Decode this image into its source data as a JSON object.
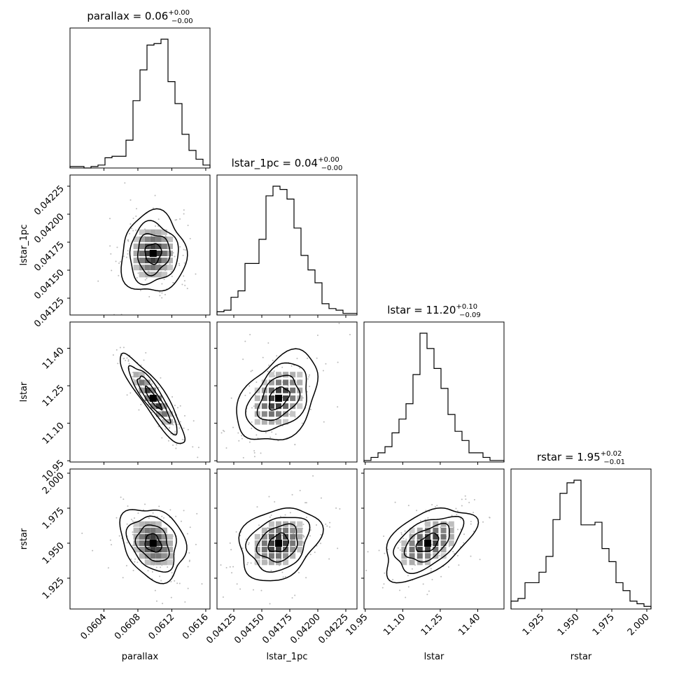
{
  "chart_data": {
    "type": "corner",
    "parameters": [
      "parallax",
      "lstar_1pc",
      "lstar",
      "rstar"
    ],
    "titles": [
      {
        "name": "parallax",
        "value": "0.06",
        "plus": "+0.00",
        "minus": "−0.00"
      },
      {
        "name": "lstar_1pc",
        "value": "0.04",
        "plus": "+0.00",
        "minus": "−0.00"
      },
      {
        "name": "lstar",
        "value": "11.20",
        "plus": "+0.10",
        "minus": "−0.09"
      },
      {
        "name": "rstar",
        "value": "1.95",
        "plus": "+0.02",
        "minus": "−0.01"
      }
    ],
    "ranges": [
      [
        0.06,
        0.06165
      ],
      [
        0.0411,
        0.04235
      ],
      [
        10.945,
        11.505
      ],
      [
        1.903,
        2.003
      ]
    ],
    "ticks": [
      [
        "0.0604",
        "0.0608",
        "0.0612",
        "0.0616"
      ],
      [
        "0.04125",
        "0.04150",
        "0.04175",
        "0.04200",
        "0.04225"
      ],
      [
        "10.95",
        "11.10",
        "11.25",
        "11.40"
      ],
      [
        "1.925",
        "1.950",
        "1.975",
        "2.000"
      ]
    ],
    "histograms": [
      {
        "start": 0.06,
        "step": 8.25e-05,
        "counts": [
          1,
          1,
          0,
          1,
          2,
          7,
          8,
          8,
          19,
          46,
          67,
          84,
          85,
          88,
          59,
          44,
          23,
          12,
          6,
          2
        ]
      },
      {
        "start": 0.0411,
        "step": 6.25e-05,
        "counts": [
          2,
          3,
          11,
          15,
          32,
          32,
          47,
          74,
          80,
          78,
          72,
          54,
          37,
          28,
          20,
          7,
          4,
          3,
          1,
          1
        ]
      },
      {
        "start": 10.945,
        "step": 0.028,
        "counts": [
          1,
          3,
          6,
          10,
          19,
          28,
          38,
          57,
          84,
          74,
          61,
          48,
          31,
          20,
          14,
          6,
          6,
          3,
          1,
          1
        ]
      },
      {
        "start": 1.903,
        "step": 0.005,
        "counts": [
          3,
          4,
          10,
          10,
          14,
          20,
          34,
          44,
          48,
          49,
          32,
          32,
          33,
          23,
          18,
          10,
          7,
          3,
          2,
          1
        ]
      }
    ],
    "pairs": [
      {
        "x": 0,
        "y": 1,
        "mx": 0.06098,
        "my": 0.04165,
        "sx": 0.00019,
        "sy": 0.00018,
        "rho": 0.05
      },
      {
        "x": 0,
        "y": 2,
        "mx": 0.06098,
        "my": 11.2,
        "sx": 0.00019,
        "sy": 0.09,
        "rho": -0.9
      },
      {
        "x": 1,
        "y": 2,
        "mx": 0.04165,
        "my": 11.2,
        "sx": 0.00018,
        "sy": 0.09,
        "rho": 0.4
      },
      {
        "x": 0,
        "y": 3,
        "mx": 0.06098,
        "my": 1.95,
        "sx": 0.00019,
        "sy": 0.013,
        "rho": -0.25
      },
      {
        "x": 1,
        "y": 3,
        "mx": 0.04165,
        "my": 1.95,
        "sx": 0.00018,
        "sy": 0.013,
        "rho": 0.25
      },
      {
        "x": 2,
        "y": 3,
        "mx": 11.2,
        "my": 1.95,
        "sx": 0.09,
        "sy": 0.013,
        "rho": 0.5
      }
    ],
    "contour_levels_sigma": [
      0.5,
      1.0,
      1.5,
      2.0
    ],
    "xlabels": [
      "parallax",
      "lstar_1pc",
      "lstar",
      "rstar"
    ],
    "ylabels": [
      "",
      "lstar_1pc",
      "lstar",
      "rstar"
    ],
    "grid": false
  }
}
